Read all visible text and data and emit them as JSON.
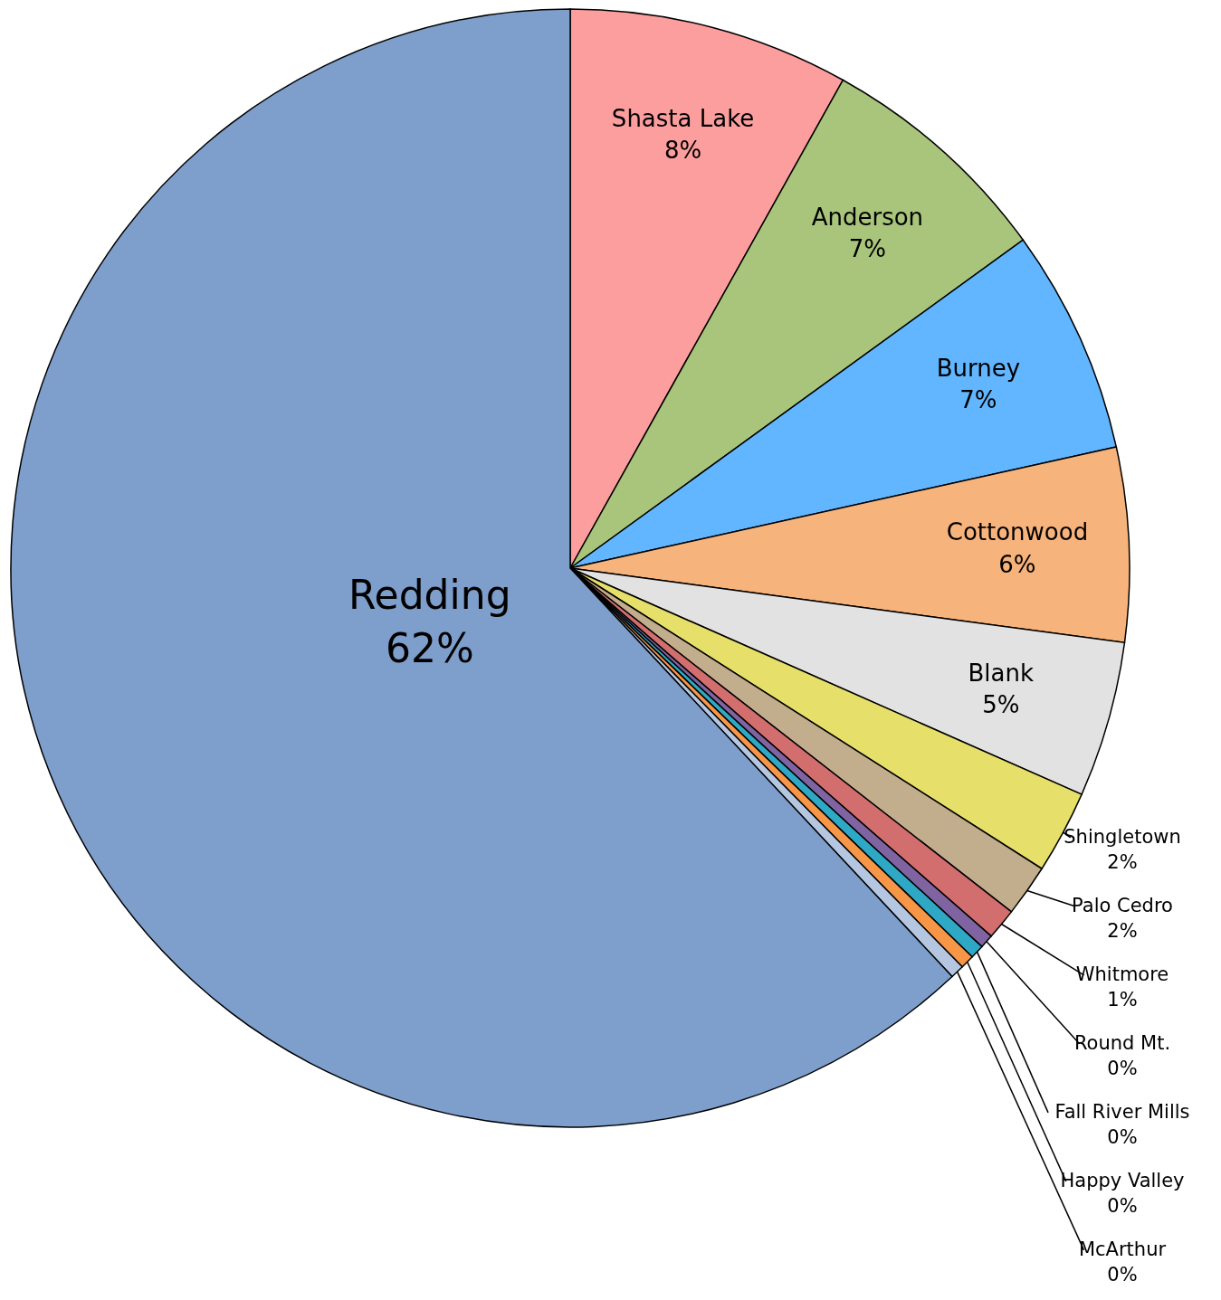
{
  "chart_data": {
    "type": "pie",
    "categories": [
      "Shasta Lake",
      "Anderson",
      "Burney",
      "Cottonwood",
      "Blank",
      "Shingletown",
      "Palo Cedro",
      "Whitmore",
      "Round Mt.",
      "Fall River Mills",
      "Happy Valley",
      "McArthur",
      "Redding"
    ],
    "values": [
      8.1,
      6.9,
      6.5,
      5.6,
      4.5,
      2.4,
      1.5,
      0.9,
      0.4,
      0.4,
      0.4,
      0.4,
      61.9
    ],
    "value_labels": [
      "8%",
      "7%",
      "7%",
      "6%",
      "5%",
      "2%",
      "2%",
      "1%",
      "0%",
      "0%",
      "0%",
      "0%",
      "62%"
    ],
    "colors": [
      "#fd9e9e",
      "#a9c57c",
      "#62b5ff",
      "#f7b37c",
      "#e2e2e2",
      "#e6e06a",
      "#c2ae8c",
      "#d26e6e",
      "#8064a2",
      "#2ea8c4",
      "#f79646",
      "#b4c6e0",
      "#7e9ecb"
    ]
  }
}
